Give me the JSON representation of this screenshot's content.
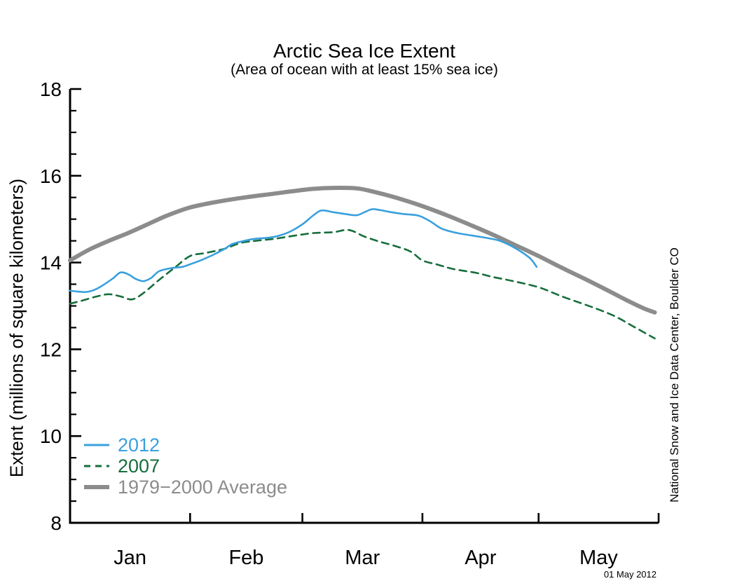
{
  "chart_data": {
    "type": "line",
    "title": "Arctic Sea Ice Extent",
    "subtitle": "(Area of ocean with at least 15% sea ice)",
    "ylabel": "Extent (millions of square kilometers)",
    "ylim": [
      8,
      18
    ],
    "y_major_ticks": [
      8,
      10,
      12,
      14,
      16,
      18
    ],
    "y_tick_labels": [
      "8",
      "10",
      "12",
      "14",
      "16",
      "18"
    ],
    "y_minor_step": 0.5,
    "grid": false,
    "x_unit": "days since Jan 1",
    "x_total_days": 152,
    "x_month_labels": [
      "Jan",
      "Feb",
      "Mar",
      "Apr",
      "May"
    ],
    "x_month_label_days": [
      15.5,
      45.5,
      75.5,
      106,
      136.5
    ],
    "x_month_tick_days": [
      31,
      60,
      91,
      121,
      152
    ],
    "legend_position": "lower-left inside plot",
    "axis_color": "#000000",
    "series": [
      {
        "name": "2012",
        "color": "#38a0dd",
        "line": "solid",
        "width": 2.6,
        "points": [
          [
            0,
            13.35
          ],
          [
            2,
            13.33
          ],
          [
            4,
            13.32
          ],
          [
            6,
            13.36
          ],
          [
            8,
            13.45
          ],
          [
            11,
            13.63
          ],
          [
            13,
            13.77
          ],
          [
            15,
            13.73
          ],
          [
            17,
            13.62
          ],
          [
            19,
            13.57
          ],
          [
            21,
            13.65
          ],
          [
            23,
            13.8
          ],
          [
            26,
            13.87
          ],
          [
            29,
            13.9
          ],
          [
            31,
            13.96
          ],
          [
            34,
            14.06
          ],
          [
            37,
            14.18
          ],
          [
            40,
            14.32
          ],
          [
            42,
            14.43
          ],
          [
            45,
            14.5
          ],
          [
            48,
            14.55
          ],
          [
            51,
            14.57
          ],
          [
            54,
            14.62
          ],
          [
            57,
            14.72
          ],
          [
            60,
            14.88
          ],
          [
            63,
            15.1
          ],
          [
            65,
            15.2
          ],
          [
            68,
            15.16
          ],
          [
            71,
            15.12
          ],
          [
            74,
            15.09
          ],
          [
            76,
            15.16
          ],
          [
            78,
            15.23
          ],
          [
            80,
            15.21
          ],
          [
            83,
            15.16
          ],
          [
            86,
            15.12
          ],
          [
            90,
            15.08
          ],
          [
            93,
            14.95
          ],
          [
            96,
            14.78
          ],
          [
            100,
            14.68
          ],
          [
            104,
            14.62
          ],
          [
            108,
            14.56
          ],
          [
            111,
            14.5
          ],
          [
            114,
            14.38
          ],
          [
            117,
            14.22
          ],
          [
            119,
            14.08
          ],
          [
            120.5,
            13.9
          ]
        ]
      },
      {
        "name": "2007",
        "color": "#166e3c",
        "line": "dashed",
        "width": 2.6,
        "points": [
          [
            0,
            13.05
          ],
          [
            3,
            13.12
          ],
          [
            7,
            13.22
          ],
          [
            10,
            13.27
          ],
          [
            13,
            13.22
          ],
          [
            16,
            13.15
          ],
          [
            19,
            13.3
          ],
          [
            23,
            13.6
          ],
          [
            27,
            13.88
          ],
          [
            31,
            14.15
          ],
          [
            35,
            14.22
          ],
          [
            40,
            14.32
          ],
          [
            44,
            14.45
          ],
          [
            48,
            14.5
          ],
          [
            53,
            14.55
          ],
          [
            58,
            14.62
          ],
          [
            63,
            14.68
          ],
          [
            68,
            14.7
          ],
          [
            72,
            14.75
          ],
          [
            76,
            14.6
          ],
          [
            80,
            14.48
          ],
          [
            84,
            14.38
          ],
          [
            88,
            14.25
          ],
          [
            91,
            14.05
          ],
          [
            95,
            13.95
          ],
          [
            99,
            13.85
          ],
          [
            105,
            13.76
          ],
          [
            109,
            13.67
          ],
          [
            114,
            13.58
          ],
          [
            121,
            13.43
          ],
          [
            127,
            13.22
          ],
          [
            133,
            13.03
          ],
          [
            137,
            12.9
          ],
          [
            141,
            12.75
          ],
          [
            145,
            12.55
          ],
          [
            148,
            12.4
          ],
          [
            151,
            12.25
          ]
        ]
      },
      {
        "name": "1979−2000 Average",
        "color": "#8c8c8c",
        "line": "solid",
        "width": 6,
        "points": [
          [
            0,
            14.05
          ],
          [
            5,
            14.3
          ],
          [
            10,
            14.5
          ],
          [
            15,
            14.68
          ],
          [
            20,
            14.88
          ],
          [
            25,
            15.08
          ],
          [
            31,
            15.27
          ],
          [
            38,
            15.4
          ],
          [
            45,
            15.5
          ],
          [
            52,
            15.58
          ],
          [
            58,
            15.65
          ],
          [
            63,
            15.7
          ],
          [
            68,
            15.72
          ],
          [
            74,
            15.71
          ],
          [
            78,
            15.64
          ],
          [
            84,
            15.5
          ],
          [
            91,
            15.3
          ],
          [
            97,
            15.1
          ],
          [
            103,
            14.88
          ],
          [
            109,
            14.65
          ],
          [
            115,
            14.4
          ],
          [
            121,
            14.15
          ],
          [
            127,
            13.88
          ],
          [
            133,
            13.62
          ],
          [
            139,
            13.35
          ],
          [
            144,
            13.12
          ],
          [
            148,
            12.95
          ],
          [
            151,
            12.85
          ]
        ]
      }
    ],
    "credit": "National Snow and Ice Data Center, Boulder CO",
    "date_stamp": "01 May 2012"
  }
}
